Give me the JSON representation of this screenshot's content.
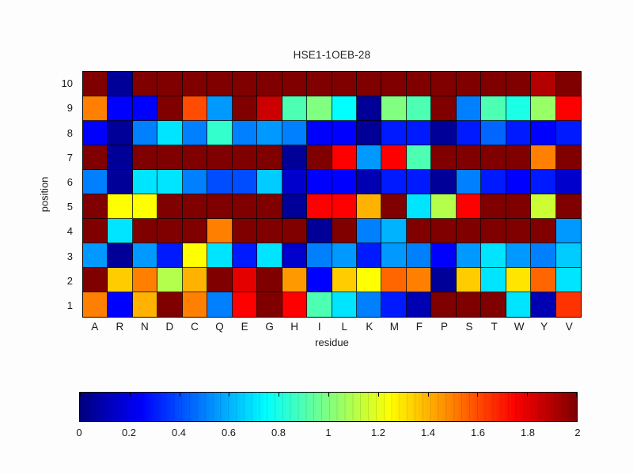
{
  "chart_data": {
    "type": "heatmap",
    "title": "HSE1-1OEB-28",
    "xlabel": "residue",
    "ylabel": "position",
    "x_categories": [
      "A",
      "R",
      "N",
      "D",
      "C",
      "Q",
      "E",
      "G",
      "H",
      "I",
      "L",
      "K",
      "M",
      "F",
      "P",
      "S",
      "T",
      "W",
      "Y",
      "V"
    ],
    "y_categories_top_to_bottom": [
      "10",
      "9",
      "8",
      "7",
      "6",
      "5",
      "4",
      "3",
      "2",
      "1"
    ],
    "colormap": "jet",
    "grid_lines": true,
    "colorbar": {
      "orientation": "horizontal",
      "position": "bottom",
      "min": 0,
      "max": 2,
      "tick_labels": [
        "0",
        "0.2",
        "0.4",
        "0.6",
        "0.8",
        "1",
        "1.2",
        "1.4",
        "1.6",
        "1.8",
        "2"
      ]
    },
    "values_rows_top_to_bottom": [
      [
        2,
        0.05,
        2,
        2,
        2,
        2,
        2,
        2,
        2,
        2,
        2,
        2,
        2,
        2,
        2,
        2,
        2,
        2,
        1.9,
        2
      ],
      [
        1.5,
        0.25,
        0.25,
        2,
        1.6,
        0.55,
        2,
        1.85,
        0.9,
        1.0,
        0.75,
        0.05,
        1.0,
        0.9,
        2,
        0.5,
        0.9,
        0.8,
        1.05,
        1.75
      ],
      [
        0.25,
        0.05,
        0.5,
        0.7,
        0.5,
        0.85,
        0.5,
        0.55,
        0.5,
        0.25,
        0.25,
        0.05,
        0.3,
        0.3,
        0.05,
        0.3,
        0.45,
        0.3,
        0.25,
        0.3
      ],
      [
        2,
        0.05,
        2,
        2,
        2,
        2,
        2,
        2,
        0.05,
        2,
        1.75,
        0.55,
        1.75,
        0.9,
        2,
        2,
        2,
        2,
        1.5,
        2
      ],
      [
        0.5,
        0.05,
        0.7,
        0.7,
        0.5,
        0.4,
        0.4,
        0.65,
        0.15,
        0.25,
        0.25,
        0.1,
        0.3,
        0.3,
        0.05,
        0.5,
        0.3,
        0.25,
        0.3,
        0.15
      ],
      [
        2,
        1.25,
        1.25,
        2,
        2,
        2,
        2,
        2,
        0.05,
        1.75,
        1.75,
        1.4,
        2,
        0.7,
        1.1,
        1.75,
        2,
        2,
        1.15,
        2
      ],
      [
        2,
        0.7,
        2,
        2,
        2,
        1.5,
        2,
        2,
        2,
        0.05,
        2,
        0.5,
        0.6,
        2,
        2,
        2,
        2,
        2,
        2,
        0.55
      ],
      [
        0.55,
        0.05,
        0.55,
        0.3,
        1.25,
        0.7,
        0.3,
        0.7,
        0.15,
        0.5,
        0.55,
        0.3,
        0.55,
        0.5,
        0.25,
        0.55,
        0.7,
        0.55,
        0.5,
        0.65
      ],
      [
        2,
        1.35,
        1.5,
        1.1,
        1.4,
        2,
        1.8,
        2,
        1.45,
        0.25,
        1.35,
        1.25,
        1.55,
        1.5,
        0.05,
        1.35,
        0.7,
        1.3,
        1.55,
        0.7
      ],
      [
        1.5,
        0.25,
        1.4,
        2,
        1.5,
        0.5,
        1.75,
        2,
        1.75,
        0.9,
        0.7,
        0.5,
        0.3,
        0.1,
        2,
        2,
        2,
        0.7,
        0.1,
        1.65
      ]
    ]
  }
}
